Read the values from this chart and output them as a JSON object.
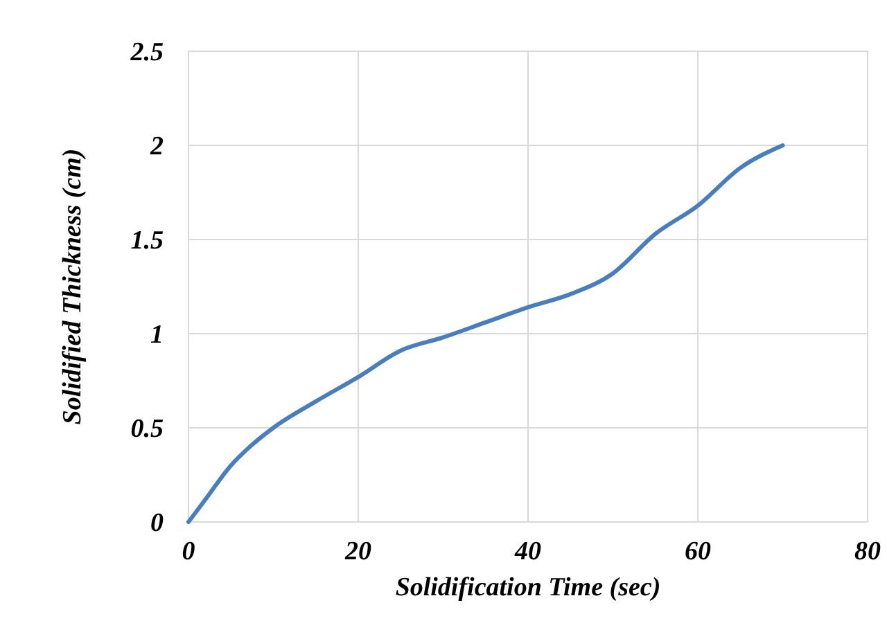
{
  "chart_data": {
    "type": "line",
    "xlabel": "Solidification Time (sec)",
    "ylabel": "Solidified Thickness (cm)",
    "series": [
      {
        "color": "#4a7ebb",
        "x": [
          0,
          2,
          5,
          7,
          10,
          15,
          20,
          25,
          30,
          35,
          40,
          45,
          50,
          55,
          60,
          65,
          70
        ],
        "values": [
          0,
          0.12,
          0.3,
          0.39,
          0.5,
          0.64,
          0.77,
          0.91,
          0.98,
          1.06,
          1.14,
          1.21,
          1.32,
          1.53,
          1.68,
          1.88,
          2.0
        ]
      }
    ],
    "xlim": [
      0,
      80
    ],
    "xticks": [
      0,
      20,
      40,
      60,
      80
    ],
    "ylim": [
      0,
      2.5
    ],
    "yticks": [
      0,
      0.5,
      1,
      1.5,
      2,
      2.5
    ],
    "grid": true,
    "marker": "none",
    "line_style": "solid"
  }
}
